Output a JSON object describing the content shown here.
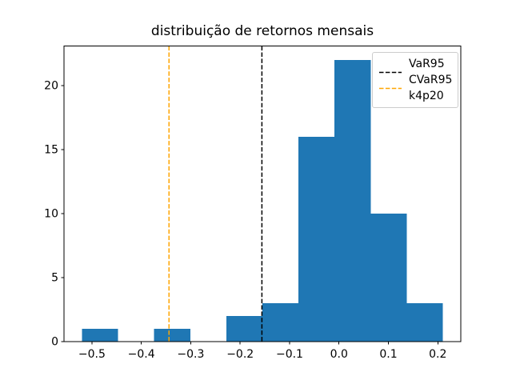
{
  "chart_data": {
    "type": "bar",
    "subtype": "histogram",
    "title": "distribuição de retornos mensais",
    "xlabel": "",
    "ylabel": "",
    "bar_color": "#1f77b4",
    "bin_edges": [
      -0.52,
      -0.447,
      -0.374,
      -0.301,
      -0.228,
      -0.155,
      -0.082,
      -0.009,
      0.064,
      0.137,
      0.21
    ],
    "counts": [
      1,
      0,
      1,
      0,
      2,
      3,
      16,
      22,
      10,
      3
    ],
    "xlim": [
      -0.5565,
      0.2465
    ],
    "ylim": [
      0,
      23.1
    ],
    "x_ticks": [
      -0.5,
      -0.4,
      -0.3,
      -0.2,
      -0.1,
      0.0,
      0.1,
      0.2
    ],
    "x_tick_labels": [
      "−0.5",
      "−0.4",
      "−0.3",
      "−0.2",
      "−0.1",
      "0.0",
      "0.1",
      "0.2"
    ],
    "y_ticks": [
      0,
      5,
      10,
      15,
      20
    ],
    "y_tick_labels": [
      "0",
      "5",
      "10",
      "15",
      "20"
    ],
    "grid": false,
    "legend_position": "upper right",
    "vlines": [
      {
        "name": "VaR95",
        "x": -0.156,
        "color": "#000000",
        "style": "dashed"
      },
      {
        "name": "CVaR95",
        "x": -0.344,
        "color": "#ffa500",
        "style": "dashed"
      }
    ]
  },
  "legend": {
    "items": [
      {
        "label": "VaR95",
        "handle": "dashed-line",
        "color": "#000000"
      },
      {
        "label": "CVaR95",
        "handle": "dashed-line",
        "color": "#ffa500"
      },
      {
        "label": "k4p20",
        "handle": "none",
        "color": null
      }
    ]
  }
}
